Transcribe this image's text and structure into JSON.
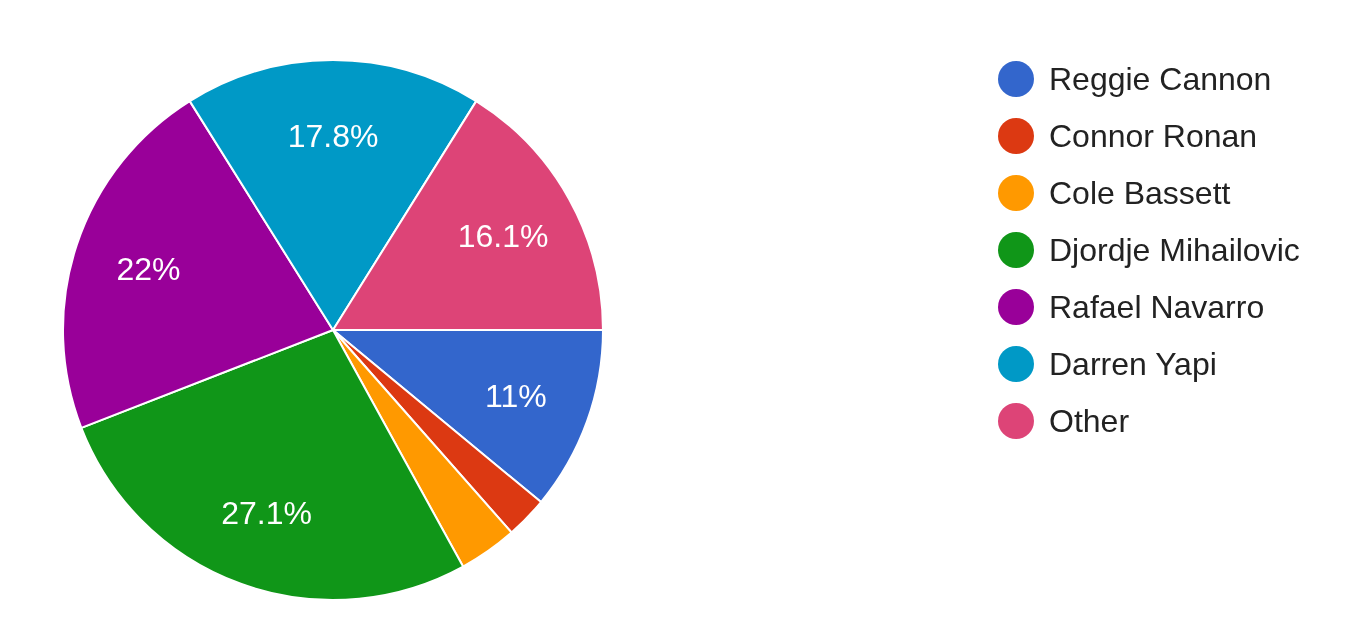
{
  "chart_data": {
    "type": "pie",
    "categories": [
      "Reggie Cannon",
      "Connor Ronan",
      "Cole Bassett",
      "Djordje Mihailovic",
      "Rafael Navarro",
      "Darren Yapi",
      "Other"
    ],
    "values": [
      11,
      2.5,
      3.5,
      27.1,
      22,
      17.8,
      16.1
    ],
    "colors": [
      "#3366cc",
      "#dc3912",
      "#ff9900",
      "#109618",
      "#990099",
      "#0099c6",
      "#dd4477"
    ],
    "value_labels": [
      "11%",
      null,
      null,
      "27.1%",
      "22%",
      "17.8%",
      "16.1%"
    ],
    "legend": "right"
  }
}
